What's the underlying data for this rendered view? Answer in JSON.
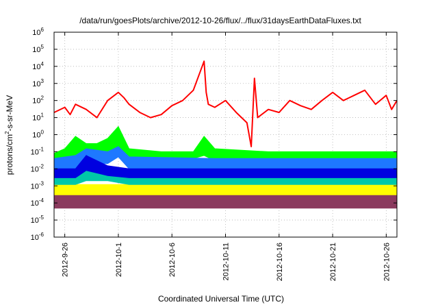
{
  "chart_data": {
    "type": "line",
    "title": "/data/run/goesPlots/archive/2012-10-26/flux/../flux/31daysEarthDataFluxes.txt",
    "xlabel": "Coordinated Universal Time (UTC)",
    "ylabel_main": "protons/cm",
    "ylabel_sup": "2",
    "ylabel_rest": "-s-sr-MeV",
    "x_domain": [
      "2012-09-25",
      "2012-10-27"
    ],
    "x_ticks": [
      "2012-9-26",
      "2012-10-1",
      "2012-10-6",
      "2012-10-11",
      "2012-10-16",
      "2012-10-21",
      "2012-10-26"
    ],
    "y_scale": "log",
    "ylim_exp": [
      -6,
      6
    ],
    "y_tick_exponents": [
      "-6",
      "-5",
      "-4",
      "-3",
      "-2",
      "-1",
      "0",
      "1",
      "2",
      "3",
      "4",
      "5",
      "6"
    ],
    "y_tick_base": "10",
    "grid": true,
    "legend": "none",
    "series": [
      {
        "color": "#8b3a5e",
        "style": "band",
        "x": [
          "2012-09-25",
          "2012-10-05",
          "2012-10-15",
          "2012-10-25",
          "2012-10-27"
        ],
        "low": [
          5e-05,
          5e-05,
          5e-05,
          5e-05,
          5e-05
        ],
        "high": [
          0.0003,
          0.0003,
          0.0003,
          0.0003,
          0.0003
        ]
      },
      {
        "color": "#ffff00",
        "style": "band",
        "x": [
          "2012-09-25",
          "2012-10-05",
          "2012-10-15",
          "2012-10-25",
          "2012-10-27"
        ],
        "low": [
          0.0003,
          0.0003,
          0.0003,
          0.0003,
          0.0003
        ],
        "high": [
          0.0012,
          0.0012,
          0.0012,
          0.0012,
          0.0012
        ]
      },
      {
        "color": "#00c8a8",
        "style": "band",
        "x": [
          "2012-09-25",
          "2012-09-27",
          "2012-09-28",
          "2012-09-30",
          "2012-10-02",
          "2012-10-10",
          "2012-10-20",
          "2012-10-27"
        ],
        "low": [
          0.0012,
          0.0012,
          0.002,
          0.002,
          0.0012,
          0.0012,
          0.0012,
          0.0012
        ],
        "high": [
          0.004,
          0.004,
          0.03,
          0.01,
          0.004,
          0.004,
          0.004,
          0.004
        ]
      },
      {
        "color": "#00ff00",
        "style": "band",
        "x": [
          "2012-09-25",
          "2012-09-26",
          "2012-09-27",
          "2012-09-28",
          "2012-09-29",
          "2012-09-30",
          "2012-10-01",
          "2012-10-02",
          "2012-10-05",
          "2012-10-08",
          "2012-10-09",
          "2012-10-10",
          "2012-10-15",
          "2012-10-27"
        ],
        "low": [
          0.03,
          0.03,
          0.05,
          0.04,
          0.05,
          0.1,
          0.2,
          0.04,
          0.03,
          0.04,
          0.06,
          0.03,
          0.03,
          0.03
        ],
        "high": [
          0.08,
          0.15,
          0.8,
          0.3,
          0.3,
          0.6,
          3,
          0.15,
          0.1,
          0.1,
          0.8,
          0.15,
          0.1,
          0.1
        ]
      },
      {
        "color": "#1e78ff",
        "style": "band",
        "x": [
          "2012-09-25",
          "2012-09-27",
          "2012-09-28",
          "2012-09-30",
          "2012-10-01",
          "2012-10-02",
          "2012-10-10",
          "2012-10-27"
        ],
        "low": [
          0.008,
          0.01,
          0.02,
          0.02,
          0.05,
          0.01,
          0.01,
          0.01
        ],
        "high": [
          0.04,
          0.06,
          0.15,
          0.1,
          0.2,
          0.05,
          0.04,
          0.04
        ]
      },
      {
        "color": "#0000e0",
        "style": "band",
        "x": [
          "2012-09-25",
          "2012-09-27",
          "2012-09-28",
          "2012-09-30",
          "2012-10-02",
          "2012-10-10",
          "2012-10-27"
        ],
        "low": [
          0.003,
          0.003,
          0.008,
          0.004,
          0.003,
          0.003,
          0.003
        ],
        "high": [
          0.01,
          0.01,
          0.06,
          0.015,
          0.01,
          0.01,
          0.01
        ]
      },
      {
        "color": "#ff0000",
        "style": "line",
        "x": [
          "2012-09-25",
          "2012-09-26",
          "2012-09-26.5",
          "2012-09-27",
          "2012-09-28",
          "2012-09-29",
          "2012-09-30",
          "2012-10-01",
          "2012-10-01.5",
          "2012-10-02",
          "2012-10-03",
          "2012-10-04",
          "2012-10-05",
          "2012-10-06",
          "2012-10-07",
          "2012-10-08",
          "2012-10-09",
          "2012-10-09.2",
          "2012-10-09.4",
          "2012-10-10",
          "2012-10-11",
          "2012-10-12",
          "2012-10-13",
          "2012-10-13.4",
          "2012-10-13.7",
          "2012-10-14",
          "2012-10-15",
          "2012-10-16",
          "2012-10-17",
          "2012-10-18",
          "2012-10-19",
          "2012-10-20",
          "2012-10-21",
          "2012-10-22",
          "2012-10-23",
          "2012-10-24",
          "2012-10-25",
          "2012-10-26",
          "2012-10-26.5",
          "2012-10-27"
        ],
        "y": [
          20,
          40,
          15,
          60,
          30,
          10,
          100,
          300,
          150,
          60,
          20,
          10,
          15,
          50,
          100,
          400,
          20000,
          300,
          60,
          40,
          100,
          20,
          5,
          0.2,
          2000,
          10,
          30,
          20,
          100,
          50,
          30,
          100,
          300,
          100,
          200,
          400,
          60,
          200,
          30,
          100
        ]
      }
    ]
  }
}
